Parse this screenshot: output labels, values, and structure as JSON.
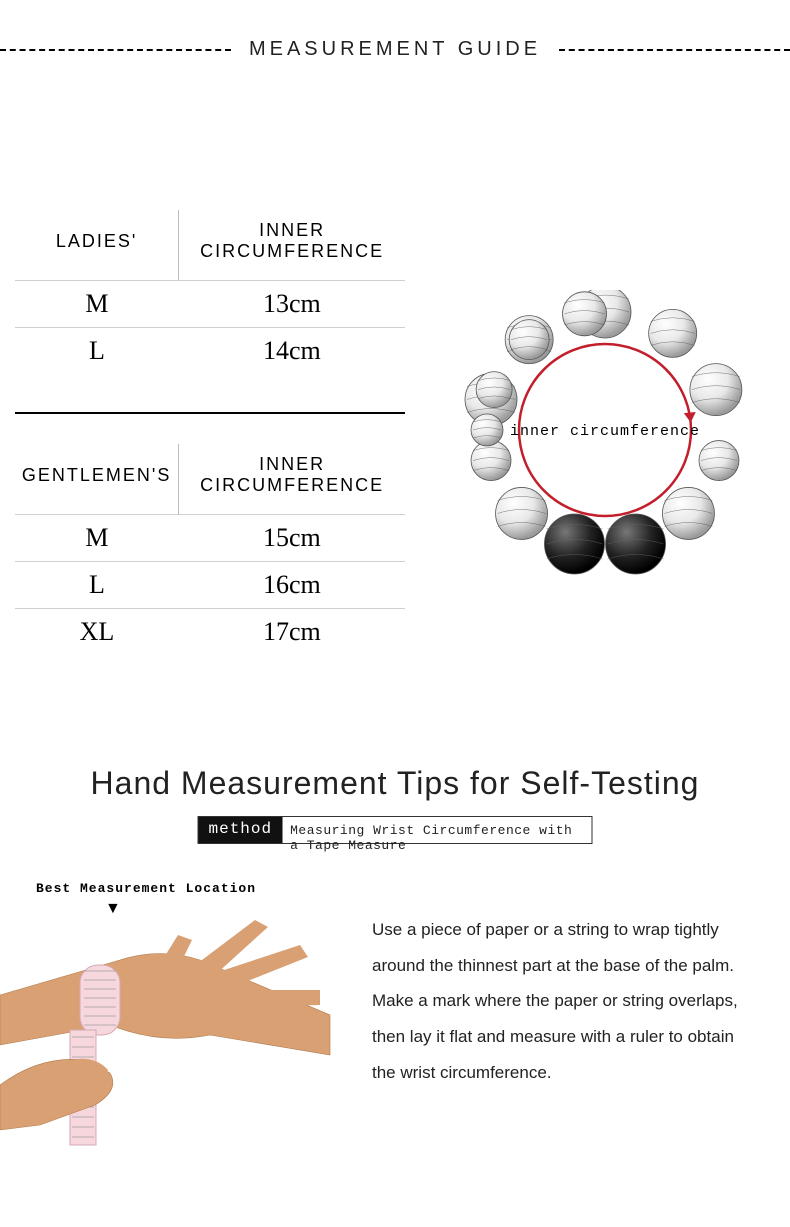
{
  "header": {
    "title": "MEASUREMENT GUIDE"
  },
  "tables": {
    "ladies": {
      "col_a": "LADIES'",
      "col_b": "INNER CIRCUMFERENCE",
      "rows": [
        {
          "size": "M",
          "value": "13cm"
        },
        {
          "size": "L",
          "value": "14cm"
        }
      ]
    },
    "gentlemen": {
      "col_a": "GENTLEMEN'S",
      "col_b": "INNER CIRCUMFERENCE",
      "rows": [
        {
          "size": "M",
          "value": "15cm"
        },
        {
          "size": "L",
          "value": "16cm"
        },
        {
          "size": "XL",
          "value": "17cm"
        }
      ]
    }
  },
  "diagram": {
    "label": "inner circumference",
    "circle_color": "#c21e2b",
    "bead_stroke": "#555555",
    "bead_fill_light": "#e8e8e8",
    "bead_fill_dark": "#1a1a1a"
  },
  "tips": {
    "title": "Hand Measurement Tips for Self-Testing",
    "method_badge": "method",
    "method_text": "Measuring Wrist Circumference with a Tape Measure",
    "best_location_label": "Best Measurement Location",
    "arrow_glyph": "▼",
    "instructions": "Use a piece of paper or a string to wrap tightly around the thinnest part at the base of the palm. Make a mark where the paper or string overlaps, then lay it flat and measure with a ruler to obtain the wrist circumference."
  },
  "hand_illustration": {
    "skin_color": "#d9a074",
    "tape_color": "#f6d7dd",
    "tape_mark_color": "#a0a0a0"
  },
  "colors": {
    "text": "#000000",
    "rule": "#000000",
    "light_rule": "#d0d0d0",
    "background": "#ffffff"
  }
}
